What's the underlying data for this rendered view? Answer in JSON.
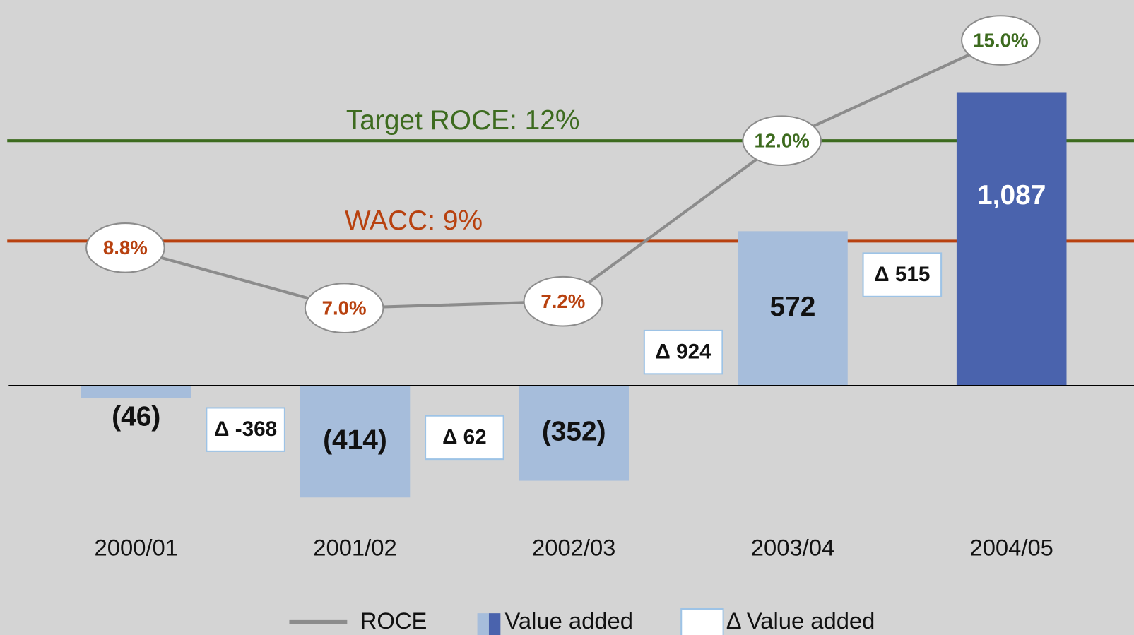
{
  "chart_data": {
    "type": "bar",
    "categories": [
      "2000/01",
      "2001/02",
      "2002/03",
      "2003/04",
      "2004/05"
    ],
    "series": [
      {
        "name": "Value added",
        "type": "bar",
        "colors": [
          "#a6bddb",
          "#a6bddb",
          "#a6bddb",
          "#a6bddb",
          "#4a63ad"
        ],
        "values": [
          -46,
          -414,
          -352,
          572,
          1087
        ],
        "value_labels": [
          "(46)",
          "(414)",
          "(352)",
          "572",
          "1,087"
        ]
      },
      {
        "name": "ROCE",
        "type": "line",
        "axis": "y2",
        "color": "#8c8c8c",
        "values": [
          8.8,
          7.0,
          7.2,
          12.0,
          15.0
        ],
        "value_labels": [
          "8.8%",
          "7.0%",
          "7.2%",
          "12.0%",
          "15.0%"
        ]
      }
    ],
    "deltas": {
      "name": "Δ Value added",
      "values": [
        -368,
        62,
        924,
        515
      ],
      "value_labels": [
        "Δ -368",
        "Δ 62",
        "Δ 924",
        "Δ 515"
      ]
    },
    "reference_lines": [
      {
        "label": "Target ROCE: 12%",
        "value": 12,
        "color": "#3d6b1f"
      },
      {
        "label": "WACC: 9%",
        "value": 9,
        "color": "#b8410f"
      }
    ],
    "ylim": [
      -500,
      1428
    ],
    "y2lim": [
      0.65,
      16.2
    ]
  }
}
